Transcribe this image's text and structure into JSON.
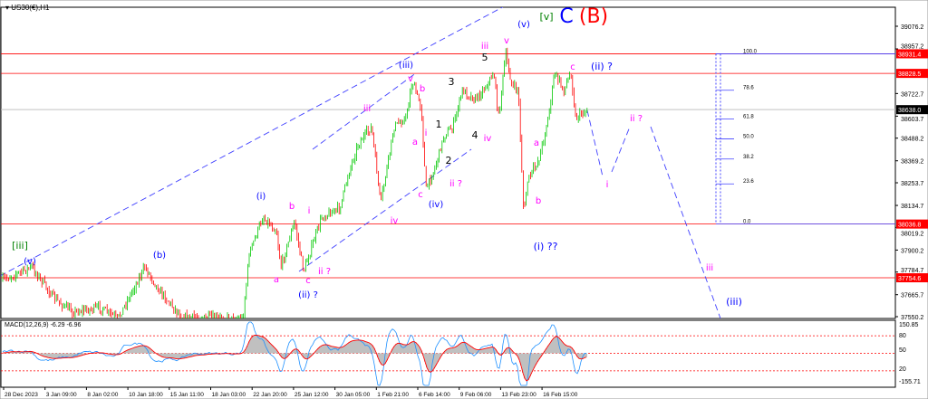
{
  "window": {
    "symbol_title": "US30(€),H1"
  },
  "chart_data": {
    "type": "candlestick",
    "symbol": "US30(€)",
    "timeframe": "H1",
    "y_ticks": [
      39076.2,
      38957.2,
      38722.7,
      38603.7,
      38488.2,
      38369.2,
      38253.7,
      38134.7,
      38019.2,
      37900.2,
      37784.7,
      37665.7,
      37550.2
    ],
    "ylim": [
      37550.2,
      39076.2
    ],
    "x_ticks": [
      "28 Dec 2023",
      "3 Jan 09:00",
      "8 Jan 02:00",
      "10 Jan 18:00",
      "15 Jan 11:00",
      "18 Jan 03:00",
      "22 Jan 20:00",
      "25 Jan 12:00",
      "30 Jan 05:00",
      "1 Feb 21:00",
      "6 Feb 14:00",
      "9 Feb 06:00",
      "13 Feb 23:00",
      "16 Feb 15:00"
    ],
    "current_price": "38638.0",
    "levels": [
      {
        "value": 38931.4,
        "label": "38931.4",
        "color": "#ff0000"
      },
      {
        "value": 38828.5,
        "label": "38828.5",
        "color": "#ff0000"
      },
      {
        "value": 38036.8,
        "label": "38036.8",
        "color": "#ff0000"
      },
      {
        "value": 37754.6,
        "label": "37754.6",
        "color": "#ff0000"
      }
    ],
    "fibonacci": {
      "high": 38931.4,
      "low": 38036.8,
      "levels": [
        "100.0",
        "78.6",
        "61.8",
        "50.0",
        "38.2",
        "23.6",
        "0.0"
      ],
      "ratios": [
        1,
        0.786,
        0.618,
        0.5,
        0.382,
        0.236,
        0
      ]
    },
    "wave_labels": [
      {
        "text": "[iii]",
        "color": "#008000"
      },
      {
        "text": "(v)",
        "color": "#0000ff"
      },
      {
        "text": "(b)",
        "color": "#0000ff"
      },
      {
        "text": "a",
        "color": "#ff00ff"
      },
      {
        "text": "b",
        "color": "#ff00ff"
      },
      {
        "text": "i",
        "color": "#ff00ff"
      },
      {
        "text": "c",
        "color": "#ff00ff"
      },
      {
        "text": "ii ?",
        "color": "#ff00ff"
      },
      {
        "text": "(ii) ?",
        "color": "#0000ff"
      },
      {
        "text": "(i)",
        "color": "#0000ff"
      },
      {
        "text": "iii",
        "color": "#ff00ff"
      },
      {
        "text": "iv",
        "color": "#ff00ff"
      },
      {
        "text": "(iii)",
        "color": "#0000ff"
      },
      {
        "text": "v",
        "color": "#ff00ff"
      },
      {
        "text": "b",
        "color": "#ff00ff"
      },
      {
        "text": "a",
        "color": "#ff00ff"
      },
      {
        "text": "i",
        "color": "#ff00ff"
      },
      {
        "text": "c",
        "color": "#ff00ff"
      },
      {
        "text": "(iv)",
        "color": "#0000ff"
      },
      {
        "text": "ii ?",
        "color": "#ff00ff"
      },
      {
        "text": "1",
        "color": "#000000"
      },
      {
        "text": "2",
        "color": "#000000"
      },
      {
        "text": "3",
        "color": "#000000"
      },
      {
        "text": "4",
        "color": "#000000"
      },
      {
        "text": "iv",
        "color": "#ff00ff"
      },
      {
        "text": "5",
        "color": "#000000"
      },
      {
        "text": "iii",
        "color": "#ff00ff"
      },
      {
        "text": "v",
        "color": "#ff00ff"
      },
      {
        "text": "(v)",
        "color": "#0000ff"
      },
      {
        "text": "[v]",
        "color": "#008000"
      },
      {
        "text": "C",
        "color": "#0000ff"
      },
      {
        "text": "(B)",
        "color": "#ff0000"
      },
      {
        "text": "c",
        "color": "#ff00ff"
      },
      {
        "text": "(ii) ?",
        "color": "#0000ff"
      },
      {
        "text": "a",
        "color": "#ff00ff"
      },
      {
        "text": "b",
        "color": "#ff00ff"
      },
      {
        "text": "(i) ??",
        "color": "#0000ff"
      },
      {
        "text": "i",
        "color": "#ff00ff"
      },
      {
        "text": "ii ?",
        "color": "#ff00ff"
      },
      {
        "text": "iii",
        "color": "#ff00ff"
      },
      {
        "text": "(iii)",
        "color": "#0000ff"
      }
    ],
    "macd": {
      "title": "MACD(12,26,9) -6.29 -6.96",
      "params": [
        12,
        26,
        9
      ],
      "main": -6.29,
      "signal": -6.96,
      "ylim": [
        -155.71,
        150.85
      ],
      "y_ticks": [
        "150.85",
        "80",
        "50",
        "20",
        "-155.71"
      ],
      "levels": [
        80,
        50,
        20
      ]
    },
    "colors": {
      "bull": "#00c800",
      "bear": "#ff0000",
      "channel": "#4040ff",
      "macd_line": "#1e90ff",
      "signal_line": "#ff0000",
      "histogram": "#c0c0c0"
    }
  }
}
